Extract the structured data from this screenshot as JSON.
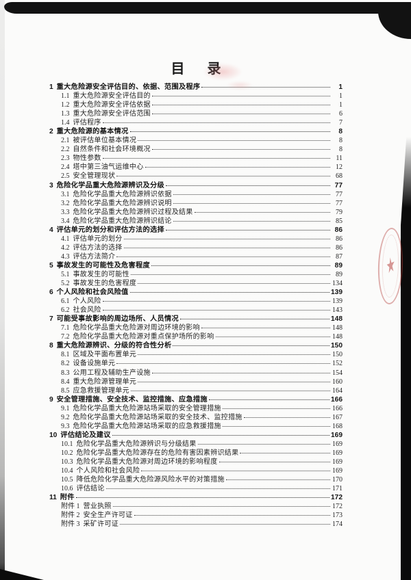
{
  "document": {
    "title": "目 录",
    "toc": [
      {
        "num": "1",
        "label": "重大危险源安全评估目的、依据、范围及程序",
        "page": "1",
        "level": 1
      },
      {
        "num": "1.1",
        "label": "重大危险源安全评估目的",
        "page": "1",
        "level": 2
      },
      {
        "num": "1.2",
        "label": "重大危险源安全评估依据",
        "page": "1",
        "level": 2
      },
      {
        "num": "1.3",
        "label": "重大危险源安全评估范围",
        "page": "6",
        "level": 2
      },
      {
        "num": "1.4",
        "label": "评估程序",
        "page": "7",
        "level": 2
      },
      {
        "num": "2",
        "label": "重大危险源的基本情况",
        "page": "8",
        "level": 1
      },
      {
        "num": "2.1",
        "label": "被评估单位基本情况",
        "page": "8",
        "level": 2
      },
      {
        "num": "2.2",
        "label": "自然条件和社会环境概况",
        "page": "8",
        "level": 2
      },
      {
        "num": "2.3",
        "label": "物性参数",
        "page": "11",
        "level": 2
      },
      {
        "num": "2.4",
        "label": "塔中第三油气运维中心",
        "page": "12",
        "level": 2
      },
      {
        "num": "2.5",
        "label": "安全管理现状",
        "page": "68",
        "level": 2
      },
      {
        "num": "3",
        "label": "危险化学品重大危险源辨识及分级",
        "page": "77",
        "level": 1
      },
      {
        "num": "3.1",
        "label": "危险化学品重大危险源辨识依据",
        "page": "77",
        "level": 2
      },
      {
        "num": "3.2",
        "label": "危险化学品重大危险源辨识说明",
        "page": "77",
        "level": 2
      },
      {
        "num": "3.3",
        "label": "危险化学品重大危险源辨识过程及结果",
        "page": "79",
        "level": 2
      },
      {
        "num": "3.4",
        "label": "危险化学品重大危险源辨识结论",
        "page": "85",
        "level": 2
      },
      {
        "num": "4",
        "label": "评估单元的划分和评估方法的选择",
        "page": "86",
        "level": 1
      },
      {
        "num": "4.1",
        "label": "评估单元的划分",
        "page": "86",
        "level": 2
      },
      {
        "num": "4.2",
        "label": "评估方法的选择",
        "page": "86",
        "level": 2
      },
      {
        "num": "4.3",
        "label": "评估方法简介",
        "page": "87",
        "level": 2
      },
      {
        "num": "5",
        "label": "事故发生的可能性及危害程度",
        "page": "89",
        "level": 1
      },
      {
        "num": "5.1",
        "label": "事故发生的可能性",
        "page": "89",
        "level": 2
      },
      {
        "num": "5.2",
        "label": "事故发生的危害程度",
        "page": "134",
        "level": 2
      },
      {
        "num": "6",
        "label": "个人风险和社会风险值",
        "page": "139",
        "level": 1
      },
      {
        "num": "6.1",
        "label": "个人风险",
        "page": "139",
        "level": 2
      },
      {
        "num": "6.2",
        "label": "社会风险",
        "page": "143",
        "level": 2
      },
      {
        "num": "7",
        "label": "可能受事故影响的周边场所、人员情况",
        "page": "148",
        "level": 1
      },
      {
        "num": "7.1",
        "label": "危险化学品重大危险源对周边环境的影响",
        "page": "148",
        "level": 2
      },
      {
        "num": "7.2",
        "label": "危险化学品重大危险源对重点保护场所的影响",
        "page": "148",
        "level": 2
      },
      {
        "num": "8",
        "label": "重大危险源辨识、分级的符合性分析",
        "page": "150",
        "level": 1
      },
      {
        "num": "8.1",
        "label": "区域及平面布置单元",
        "page": "150",
        "level": 2
      },
      {
        "num": "8.2",
        "label": "设备设施单元",
        "page": "152",
        "level": 2
      },
      {
        "num": "8.3",
        "label": "公用工程及辅助生产设施",
        "page": "154",
        "level": 2
      },
      {
        "num": "8.4",
        "label": "重大危险源管理单元",
        "page": "160",
        "level": 2
      },
      {
        "num": "8.5",
        "label": "应急救援管理单元",
        "page": "164",
        "level": 2
      },
      {
        "num": "9",
        "label": "安全管理措施、安全技术、监控措施、应急措施",
        "page": "166",
        "level": 1
      },
      {
        "num": "9.1",
        "label": "危险化学品重大危险源站场采取的安全管理措施",
        "page": "166",
        "level": 2
      },
      {
        "num": "9.2",
        "label": "危险化学品重大危险源站场采取的安全技术、监控措施",
        "page": "167",
        "level": 2
      },
      {
        "num": "9.3",
        "label": "危险化学品重大危险源站场采取的应急救援措施",
        "page": "168",
        "level": 2
      },
      {
        "num": "10",
        "label": "评估结论及建议",
        "page": "169",
        "level": 1
      },
      {
        "num": "10.1",
        "label": "危险化学品重大危险源辨识与分级结果",
        "page": "169",
        "level": 2
      },
      {
        "num": "10.2",
        "label": "危险化学品重大危险源存在的危险有害因素辨识结果",
        "page": "169",
        "level": 2
      },
      {
        "num": "10.3",
        "label": "危险化学品重大危险源对周边环境的影响程度",
        "page": "169",
        "level": 2
      },
      {
        "num": "10.4",
        "label": "个人风险和社会风险",
        "page": "169",
        "level": 2
      },
      {
        "num": "10.5",
        "label": "降低危险化学品重大危险源风险水平的对策措施",
        "page": "170",
        "level": 2
      },
      {
        "num": "10.6",
        "label": "评估结论",
        "page": "171",
        "level": 2
      },
      {
        "num": "11",
        "label": "附件",
        "page": "172",
        "level": 1
      },
      {
        "num": "附件 1",
        "label": "营业执照",
        "page": "172",
        "level": 2
      },
      {
        "num": "附件 2",
        "label": "安全生产许可证",
        "page": "173",
        "level": 2
      },
      {
        "num": "附件 3",
        "label": "采矿许可证",
        "page": "174",
        "level": 2
      }
    ]
  },
  "scan": {
    "artifacts": {
      "stamp_icon": "red-seal-star-stamp",
      "stamp_color": "#b43c37",
      "paper_color": "#fbfbfa",
      "border_color": "#0d0d0d",
      "page_stack_color": "#9aa09c",
      "star_glyph": "★"
    }
  }
}
